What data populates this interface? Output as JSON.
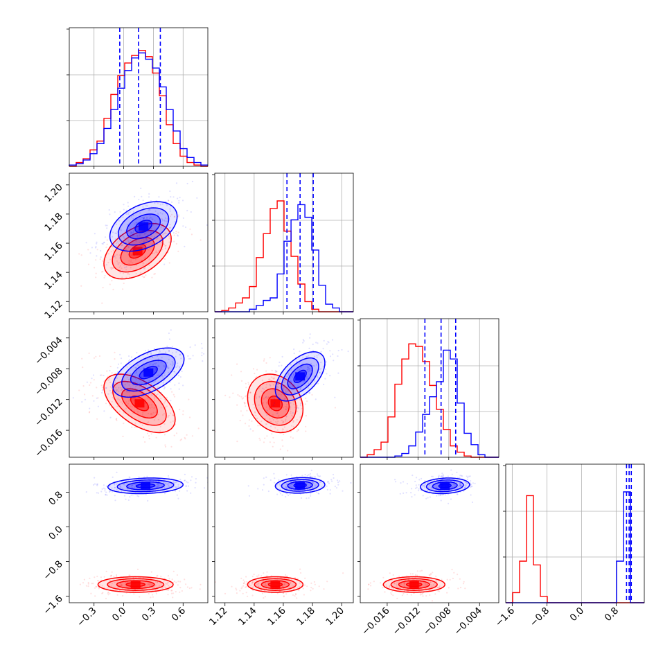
{
  "chart_data": {
    "type": "corner",
    "n_params": 4,
    "colors": {
      "blue": "#0000ff",
      "red": "#ff0000",
      "grid": "#b0b0b0",
      "axis": "#000000"
    },
    "params": [
      {
        "range": [
          -0.55,
          0.85
        ]
      },
      {
        "range": [
          1.113,
          1.208
        ]
      },
      {
        "range": [
          -0.0195,
          -0.0015
        ]
      },
      {
        "range": [
          -1.75,
          1.45
        ]
      }
    ],
    "ticks": [
      {
        "values": [
          -0.3,
          0.0,
          0.3,
          0.6
        ],
        "labels": [
          "−0.3",
          "0.0",
          "0.3",
          "0.6"
        ]
      },
      {
        "values": [
          1.12,
          1.14,
          1.16,
          1.18,
          1.2
        ],
        "labels": [
          "1.12",
          "1.14",
          "1.16",
          "1.18",
          "1.20"
        ]
      },
      {
        "values": [
          -0.016,
          -0.012,
          -0.008,
          -0.004
        ],
        "labels": [
          "−0.016",
          "−0.012",
          "−0.008",
          "−0.004"
        ]
      },
      {
        "values": [
          -1.6,
          -0.8,
          0.0,
          0.8
        ],
        "labels": [
          "−1.6",
          "−0.8",
          "0.0",
          "0.8"
        ]
      }
    ],
    "histograms": [
      {
        "edges": [
          -0.55,
          -0.48,
          -0.41,
          -0.34,
          -0.27,
          -0.2,
          -0.13,
          -0.06,
          0.01,
          0.08,
          0.15,
          0.22,
          0.29,
          0.36,
          0.43,
          0.5,
          0.57,
          0.64,
          0.71,
          0.78,
          0.85
        ],
        "ymax": 1.0,
        "red": [
          0.0,
          0.03,
          0.06,
          0.13,
          0.2,
          0.38,
          0.57,
          0.72,
          0.82,
          0.88,
          0.92,
          0.87,
          0.74,
          0.56,
          0.33,
          0.18,
          0.08,
          0.03,
          0.01,
          0.0
        ],
        "blue": [
          0.01,
          0.02,
          0.05,
          0.1,
          0.18,
          0.3,
          0.45,
          0.62,
          0.76,
          0.86,
          0.9,
          0.85,
          0.78,
          0.63,
          0.45,
          0.28,
          0.14,
          0.07,
          0.03,
          0.01
        ],
        "quantiles": [
          -0.04,
          0.15,
          0.37
        ]
      },
      {
        "edges": [
          1.113,
          1.1178,
          1.1225,
          1.1273,
          1.132,
          1.1368,
          1.1415,
          1.1463,
          1.151,
          1.1558,
          1.1605,
          1.1653,
          1.17,
          1.1748,
          1.1795,
          1.1843,
          1.189,
          1.1938,
          1.1985,
          1.2033,
          1.208
        ],
        "ymax": 1.0,
        "red": [
          0.0,
          0.01,
          0.03,
          0.07,
          0.11,
          0.2,
          0.43,
          0.62,
          0.82,
          0.88,
          0.64,
          0.44,
          0.22,
          0.08,
          0.02,
          0.0,
          0.0,
          0.0,
          0.0,
          0.0
        ],
        "blue": [
          0.0,
          0.0,
          0.0,
          0.0,
          0.0,
          0.02,
          0.05,
          0.09,
          0.11,
          0.3,
          0.56,
          0.73,
          0.85,
          0.75,
          0.49,
          0.21,
          0.06,
          0.03,
          0.0,
          0.0
        ],
        "quantiles": [
          1.1625,
          1.1715,
          1.1805
        ]
      },
      {
        "edges": [
          -0.0195,
          -0.0186,
          -0.0177,
          -0.0168,
          -0.0159,
          -0.015,
          -0.0141,
          -0.0132,
          -0.0123,
          -0.0114,
          -0.0105,
          -0.0096,
          -0.0087,
          -0.0078,
          -0.0069,
          -0.006,
          -0.0051,
          -0.0042,
          -0.0033,
          -0.0024,
          -0.0015
        ],
        "ymax": 1.0,
        "red": [
          0.0,
          0.02,
          0.06,
          0.12,
          0.32,
          0.58,
          0.78,
          0.9,
          0.88,
          0.76,
          0.57,
          0.38,
          0.22,
          0.09,
          0.04,
          0.01,
          0.0,
          0.0,
          0.0,
          0.0
        ],
        "blue": [
          0.0,
          0.0,
          0.0,
          0.0,
          0.0,
          0.01,
          0.03,
          0.09,
          0.2,
          0.34,
          0.48,
          0.6,
          0.85,
          0.78,
          0.43,
          0.19,
          0.1,
          0.02,
          0.0,
          0.0
        ],
        "quantiles": [
          -0.0111,
          -0.009,
          -0.0071
        ]
      },
      {
        "edges": [
          -1.75,
          -1.59,
          -1.43,
          -1.27,
          -1.11,
          -0.95,
          -0.79,
          -0.63,
          -0.47,
          -0.31,
          -0.15,
          0.01,
          0.17,
          0.33,
          0.49,
          0.65,
          0.81,
          0.97,
          1.13,
          1.29,
          1.45
        ],
        "ymax": 1.0,
        "red": [
          0.0,
          0.08,
          0.33,
          0.85,
          0.3,
          0.05,
          0.0,
          0.0,
          0.0,
          0.0,
          0.0,
          0.0,
          0.0,
          0.0,
          0.0,
          0.0,
          0.0,
          0.0,
          0.0,
          0.0
        ],
        "blue": [
          0.0,
          0.0,
          0.0,
          0.0,
          0.0,
          0.0,
          0.0,
          0.0,
          0.0,
          0.0,
          0.0,
          0.0,
          0.0,
          0.0,
          0.0,
          0.0,
          0.33,
          0.88,
          0.0,
          0.0
        ],
        "quantiles": [
          1.04,
          1.1,
          1.15
        ]
      }
    ],
    "pairs": [
      {
        "row": 1,
        "col": 0,
        "red": {
          "mean": [
            0.14,
            1.1545
          ],
          "sd": [
            0.17,
            0.0095
          ],
          "rho": 0.45
        },
        "blue": {
          "mean": [
            0.2,
            1.1715
          ],
          "sd": [
            0.17,
            0.0085
          ],
          "rho": 0.4
        }
      },
      {
        "row": 2,
        "col": 0,
        "red": {
          "mean": [
            0.16,
            -0.0125
          ],
          "sd": [
            0.18,
            0.0019
          ],
          "rho": -0.55
        },
        "blue": {
          "mean": [
            0.25,
            -0.0085
          ],
          "sd": [
            0.18,
            0.0016
          ],
          "rho": 0.55
        }
      },
      {
        "row": 2,
        "col": 1,
        "red": {
          "mean": [
            1.1545,
            -0.0125
          ],
          "sd": [
            0.0095,
            0.0019
          ],
          "rho": -0.2
        },
        "blue": {
          "mean": [
            1.1715,
            -0.009
          ],
          "sd": [
            0.0085,
            0.0016
          ],
          "rho": 0.55
        }
      },
      {
        "row": 3,
        "col": 0,
        "red": {
          "mean": [
            0.12,
            -1.33
          ],
          "sd": [
            0.19,
            0.09
          ],
          "rho": 0.0
        },
        "blue": {
          "mean": [
            0.22,
            0.95
          ],
          "sd": [
            0.19,
            0.09
          ],
          "rho": 0.15
        }
      },
      {
        "row": 3,
        "col": 1,
        "red": {
          "mean": [
            1.1545,
            -1.33
          ],
          "sd": [
            0.0095,
            0.09
          ],
          "rho": 0.0
        },
        "blue": {
          "mean": [
            1.1715,
            0.96
          ],
          "sd": [
            0.0085,
            0.09
          ],
          "rho": 0.1
        }
      },
      {
        "row": 3,
        "col": 2,
        "red": {
          "mean": [
            -0.0125,
            -1.33
          ],
          "sd": [
            0.002,
            0.09
          ],
          "rho": 0.0
        },
        "blue": {
          "mean": [
            -0.0085,
            0.95
          ],
          "sd": [
            0.0016,
            0.09
          ],
          "rho": 0.15
        }
      }
    ],
    "contour_levels_sigma": [
      0.5,
      1.0,
      1.5,
      2.0
    ]
  }
}
